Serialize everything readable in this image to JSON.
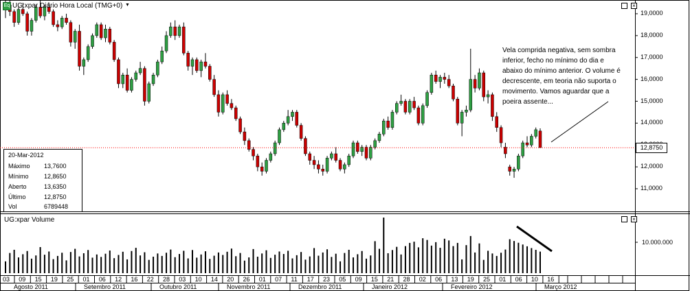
{
  "price_panel": {
    "title": "UG:xpar Diário Hora Local (TMG+0)",
    "icon": "green-square-icon",
    "y_ticks": [
      "19,0000",
      "18,0000",
      "17,0000",
      "16,0000",
      "15,0000",
      "14,0000",
      "13,0000",
      "12,0000",
      "11,0000"
    ],
    "last_price_label": "12,8750"
  },
  "info_box": {
    "date": "20-Mar-2012",
    "rows": [
      {
        "label": "Máximo",
        "value": "13,7600"
      },
      {
        "label": "Mínimo",
        "value": "12,8650"
      },
      {
        "label": "Aberto",
        "value": "13,6350"
      },
      {
        "label": "Último",
        "value": "12,8750"
      },
      {
        "label": "Vol",
        "value": "6789448"
      }
    ]
  },
  "annotation": "Vela comprida negativa, sem sombra inferior, fecho no mínimo do dia e abaixo do mínimo anterior. O volume é decrescente, em teoria não suporta o movimento. Vamos aguardar que a poeira assente...",
  "volume_panel": {
    "title": "UG:xpar Volume",
    "y_tick": "10.000.000"
  },
  "x_axis": {
    "days": [
      "03",
      "09",
      "15",
      "19",
      "25",
      "01",
      "06",
      "12",
      "16",
      "22",
      "28",
      "03",
      "10",
      "14",
      "20",
      "26",
      "01",
      "07",
      "11",
      "17",
      "23",
      "05",
      "09",
      "15",
      "21",
      "28",
      "02",
      "06",
      "13",
      "19",
      "25",
      "01",
      "06",
      "10",
      "16",
      "22",
      "05",
      "09",
      "15"
    ],
    "months": [
      "Agosto 2011",
      "Setembro 2011",
      "Outubro 2011",
      "Novembro 2011",
      "Dezembro 2011",
      "Janeiro 2012",
      "Fevereiro 2012",
      "Março 2012"
    ]
  },
  "colors": {
    "up": "#2ea043",
    "down": "#cc0000",
    "last_line": "#ff0000"
  },
  "chart_data": {
    "type": "candlestick",
    "y_range": [
      10,
      19.5
    ],
    "up_color": "#2ea043",
    "down_color": "#cc0000",
    "candles": [
      [
        19.2,
        19.6,
        18.8,
        19.4
      ],
      [
        19.4,
        19.6,
        18.9,
        19.1
      ],
      [
        19.1,
        19.2,
        18.4,
        18.6
      ],
      [
        18.6,
        19.3,
        18.5,
        19.2
      ],
      [
        19.2,
        19.5,
        18.9,
        19.0
      ],
      [
        19.0,
        19.1,
        18.0,
        18.2
      ],
      [
        18.2,
        18.8,
        18.0,
        18.7
      ],
      [
        18.7,
        19.4,
        18.6,
        19.3
      ],
      [
        19.3,
        19.6,
        18.8,
        18.9
      ],
      [
        18.9,
        19.4,
        18.7,
        19.3
      ],
      [
        19.3,
        19.5,
        19.0,
        19.1
      ],
      [
        19.1,
        19.2,
        18.4,
        18.5
      ],
      [
        18.5,
        18.7,
        18.2,
        18.4
      ],
      [
        18.4,
        18.9,
        18.3,
        18.8
      ],
      [
        18.8,
        19.0,
        18.5,
        18.6
      ],
      [
        18.6,
        18.7,
        17.5,
        17.7
      ],
      [
        17.7,
        18.3,
        17.4,
        18.2
      ],
      [
        18.2,
        18.5,
        16.4,
        16.6
      ],
      [
        16.6,
        17.0,
        16.2,
        16.9
      ],
      [
        16.9,
        17.6,
        16.8,
        17.5
      ],
      [
        17.5,
        18.1,
        17.4,
        18.0
      ],
      [
        18.0,
        18.6,
        17.9,
        18.5
      ],
      [
        18.5,
        18.6,
        17.8,
        17.9
      ],
      [
        17.9,
        18.5,
        17.7,
        18.3
      ],
      [
        18.3,
        18.4,
        17.6,
        17.7
      ],
      [
        17.7,
        17.8,
        16.8,
        16.9
      ],
      [
        16.9,
        17.0,
        15.6,
        15.8
      ],
      [
        15.8,
        16.3,
        15.6,
        16.2
      ],
      [
        16.2,
        16.5,
        15.4,
        15.5
      ],
      [
        15.5,
        16.1,
        15.4,
        16.0
      ],
      [
        16.0,
        16.4,
        15.9,
        16.3
      ],
      [
        16.3,
        16.8,
        16.2,
        16.5
      ],
      [
        16.5,
        16.6,
        14.8,
        15.0
      ],
      [
        15.0,
        15.9,
        14.9,
        15.8
      ],
      [
        15.8,
        16.3,
        15.7,
        16.2
      ],
      [
        16.2,
        16.9,
        16.1,
        16.8
      ],
      [
        16.8,
        17.5,
        16.7,
        17.3
      ],
      [
        17.3,
        18.2,
        17.2,
        18.0
      ],
      [
        18.0,
        18.6,
        17.9,
        18.4
      ],
      [
        18.4,
        18.7,
        17.8,
        18.0
      ],
      [
        18.0,
        18.5,
        17.9,
        18.4
      ],
      [
        18.4,
        18.6,
        17.1,
        17.2
      ],
      [
        17.2,
        17.3,
        16.4,
        16.6
      ],
      [
        16.6,
        17.0,
        16.2,
        16.9
      ],
      [
        16.9,
        17.0,
        16.3,
        16.4
      ],
      [
        16.4,
        16.9,
        16.1,
        16.8
      ],
      [
        16.8,
        17.2,
        16.5,
        16.6
      ],
      [
        16.6,
        16.7,
        15.9,
        16.0
      ],
      [
        16.0,
        16.2,
        15.2,
        15.3
      ],
      [
        15.3,
        15.5,
        14.3,
        14.5
      ],
      [
        14.5,
        15.4,
        14.4,
        15.3
      ],
      [
        15.3,
        15.5,
        14.8,
        14.9
      ],
      [
        14.9,
        15.1,
        14.6,
        14.7
      ],
      [
        14.7,
        14.8,
        14.1,
        14.2
      ],
      [
        14.2,
        14.3,
        13.5,
        13.6
      ],
      [
        13.6,
        13.8,
        13.0,
        13.2
      ],
      [
        13.2,
        13.3,
        12.7,
        12.8
      ],
      [
        12.8,
        12.9,
        12.3,
        12.5
      ],
      [
        12.5,
        12.6,
        11.8,
        12.0
      ],
      [
        12.0,
        12.2,
        11.6,
        11.8
      ],
      [
        11.8,
        12.4,
        11.7,
        12.3
      ],
      [
        12.3,
        12.7,
        12.2,
        12.6
      ],
      [
        12.6,
        13.2,
        12.5,
        13.1
      ],
      [
        13.1,
        13.8,
        13.0,
        13.7
      ],
      [
        13.7,
        14.1,
        13.6,
        14.0
      ],
      [
        14.0,
        14.6,
        13.9,
        14.3
      ],
      [
        14.3,
        14.6,
        14.1,
        14.5
      ],
      [
        14.5,
        14.6,
        13.8,
        13.9
      ],
      [
        13.9,
        14.0,
        13.2,
        13.3
      ],
      [
        13.3,
        13.4,
        12.5,
        12.6
      ],
      [
        12.6,
        12.7,
        12.1,
        12.3
      ],
      [
        12.3,
        12.5,
        11.9,
        12.1
      ],
      [
        12.1,
        12.3,
        11.7,
        11.9
      ],
      [
        11.9,
        12.1,
        11.6,
        11.8
      ],
      [
        11.8,
        12.5,
        11.7,
        12.4
      ],
      [
        12.4,
        12.7,
        12.3,
        12.6
      ],
      [
        12.6,
        12.9,
        12.2,
        12.3
      ],
      [
        12.3,
        12.4,
        11.8,
        11.9
      ],
      [
        11.9,
        12.2,
        11.7,
        12.1
      ],
      [
        12.1,
        12.6,
        12.0,
        12.5
      ],
      [
        12.5,
        13.2,
        12.4,
        13.1
      ],
      [
        13.1,
        13.2,
        12.6,
        12.7
      ],
      [
        12.7,
        13.0,
        12.5,
        12.9
      ],
      [
        12.9,
        13.0,
        12.3,
        12.4
      ],
      [
        12.4,
        13.0,
        12.3,
        12.9
      ],
      [
        12.9,
        13.3,
        12.8,
        13.2
      ],
      [
        13.2,
        13.6,
        13.1,
        13.5
      ],
      [
        13.5,
        14.2,
        13.4,
        14.1
      ],
      [
        14.1,
        14.3,
        13.7,
        13.8
      ],
      [
        13.8,
        14.6,
        13.7,
        14.5
      ],
      [
        14.5,
        15.0,
        14.4,
        14.9
      ],
      [
        14.9,
        15.3,
        14.8,
        15.0
      ],
      [
        15.0,
        15.1,
        14.4,
        14.5
      ],
      [
        14.5,
        15.1,
        14.4,
        15.0
      ],
      [
        15.0,
        15.2,
        14.6,
        14.7
      ],
      [
        14.7,
        14.8,
        13.9,
        14.0
      ],
      [
        14.0,
        14.9,
        13.9,
        14.8
      ],
      [
        14.8,
        15.5,
        14.7,
        15.4
      ],
      [
        15.4,
        16.3,
        15.3,
        16.2
      ],
      [
        16.2,
        16.4,
        15.8,
        15.9
      ],
      [
        15.9,
        16.2,
        15.6,
        16.1
      ],
      [
        16.1,
        16.3,
        15.8,
        16.0
      ],
      [
        16.0,
        16.2,
        15.6,
        15.7
      ],
      [
        15.7,
        15.8,
        15.0,
        15.1
      ],
      [
        15.1,
        15.2,
        13.9,
        14.0
      ],
      [
        14.0,
        14.6,
        13.4,
        14.5
      ],
      [
        14.5,
        14.8,
        14.3,
        14.6
      ],
      [
        14.6,
        17.4,
        14.5,
        16.0
      ],
      [
        16.0,
        16.2,
        15.4,
        15.6
      ],
      [
        15.6,
        16.5,
        15.5,
        16.3
      ],
      [
        16.3,
        16.4,
        15.0,
        15.2
      ],
      [
        15.2,
        15.5,
        14.9,
        15.3
      ],
      [
        15.3,
        15.4,
        14.1,
        14.3
      ],
      [
        14.3,
        14.5,
        13.6,
        13.8
      ],
      [
        13.8,
        13.9,
        12.9,
        13.1
      ],
      [
        12.9,
        13.1,
        12.4,
        12.6
      ],
      [
        12.0,
        12.1,
        11.6,
        11.8
      ],
      [
        11.8,
        12.0,
        11.5,
        11.9
      ],
      [
        11.9,
        12.6,
        11.8,
        12.5
      ],
      [
        12.5,
        13.2,
        12.4,
        13.1
      ],
      [
        13.1,
        13.4,
        12.9,
        13.0
      ],
      [
        13.0,
        13.5,
        12.9,
        13.4
      ],
      [
        13.4,
        13.8,
        13.3,
        13.7
      ],
      [
        13.64,
        13.76,
        12.87,
        12.88
      ]
    ],
    "volume_note": "volume bars decreasing at end of series"
  }
}
